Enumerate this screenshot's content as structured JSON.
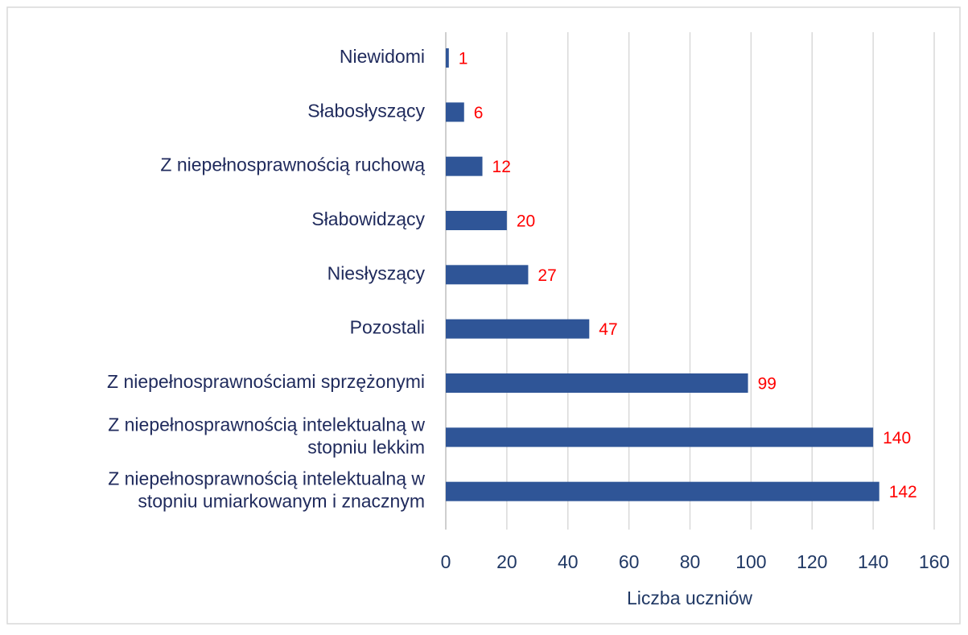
{
  "chart_data": {
    "type": "barh",
    "categories": [
      "Niewidomi",
      "Słabosłyszący",
      "Z niepełnosprawnością ruchową",
      "Słabowidzący",
      "Niesłyszący",
      "Pozostali",
      "Z niepełnosprawnościami sprzężonymi",
      "Z niepełnosprawnością intelektualną w\nstopniu lekkim",
      "Z niepełnosprawnością intelektualną w\nstopniu umiarkowanym i znacznym"
    ],
    "values": [
      1,
      6,
      12,
      20,
      27,
      47,
      99,
      140,
      142
    ],
    "color": "#2f5597",
    "label_color": "#ff0000",
    "xlabel": "Liczba uczniów",
    "xlim": [
      0,
      160
    ],
    "xticks": [
      0,
      20,
      40,
      60,
      80,
      100,
      120,
      140,
      160
    ],
    "grid": true
  }
}
